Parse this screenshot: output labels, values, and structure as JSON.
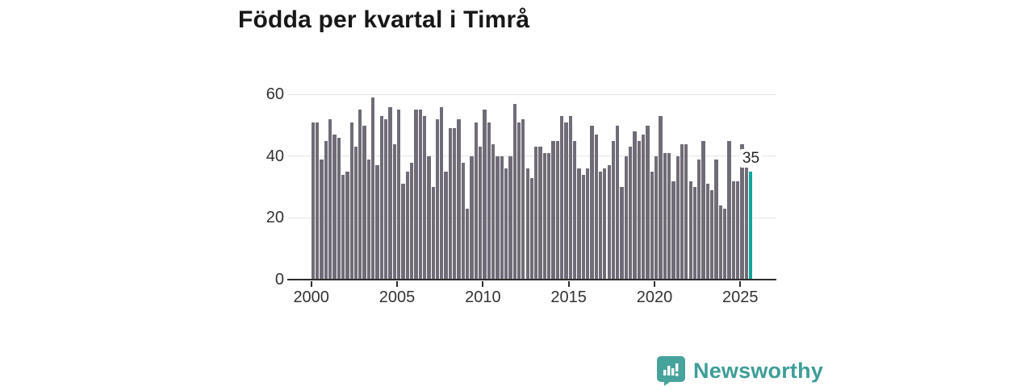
{
  "title": "Födda per kvartal i Timrå",
  "chart_data": {
    "type": "bar",
    "title": "Födda per kvartal i Timrå",
    "start_year": 2000,
    "start_quarter": 1,
    "end_year": 2025,
    "end_quarter": 3,
    "values": [
      51,
      51,
      39,
      45,
      52,
      47,
      46,
      34,
      35,
      51,
      43,
      55,
      50,
      39,
      59,
      37,
      53,
      52,
      56,
      44,
      55,
      31,
      35,
      38,
      55,
      55,
      53,
      40,
      30,
      52,
      56,
      35,
      49,
      49,
      52,
      38,
      23,
      40,
      51,
      43,
      55,
      51,
      44,
      40,
      40,
      36,
      40,
      57,
      51,
      52,
      36,
      33,
      43,
      43,
      41,
      41,
      45,
      45,
      53,
      51,
      53,
      45,
      36,
      34,
      36,
      50,
      47,
      35,
      36,
      37,
      45,
      50,
      30,
      40,
      43,
      48,
      45,
      47,
      50,
      35,
      40,
      53,
      41,
      41,
      32,
      40,
      44,
      44,
      32,
      30,
      39,
      45,
      31,
      29,
      39,
      24,
      23,
      45,
      32,
      32,
      44,
      38,
      35
    ],
    "highlight_last_bar": true,
    "last_bar_label": "35",
    "bar_color": "#706c77",
    "highlight_color": "#0ba79b",
    "y_ticks": [
      0,
      20,
      40,
      60
    ],
    "x_ticks": [
      2000,
      2005,
      2010,
      2015,
      2020,
      2025
    ],
    "ylim": [
      0,
      60
    ],
    "grid": true,
    "legend": "none"
  },
  "footer": {
    "brand": "Newsworthy",
    "logo_icon": "newsworthy-speech-bubble-chart-icon",
    "brand_color": "#3d9e97",
    "logo_fill": "#46a39c"
  }
}
